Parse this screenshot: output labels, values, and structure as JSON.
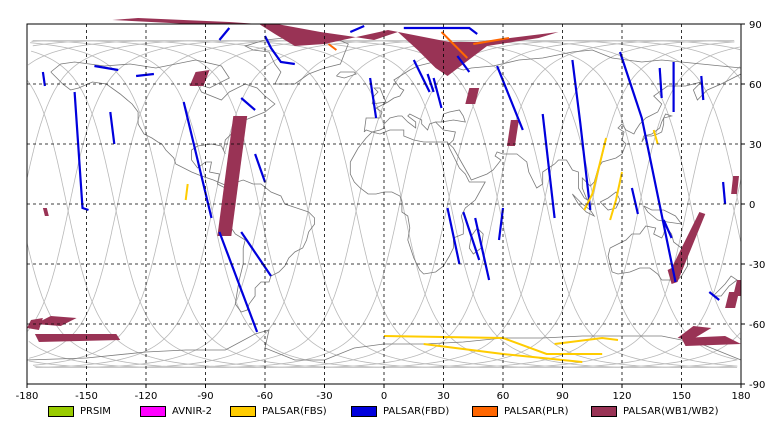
{
  "map": {
    "x_axis": {
      "min": -180,
      "max": 180,
      "ticks": [
        -180,
        -150,
        -120,
        -90,
        -60,
        -30,
        0,
        30,
        60,
        90,
        120,
        150,
        180
      ]
    },
    "y_axis": {
      "min": -90,
      "max": 90,
      "ticks": [
        90,
        60,
        30,
        0,
        -30,
        -60,
        -90
      ]
    },
    "grid": true,
    "grid_style": "dashed"
  },
  "legend": {
    "placement": "bottom",
    "items": [
      {
        "label": "PRSIM",
        "color": "#99cc00"
      },
      {
        "label": "AVNIR-2",
        "color": "#ff00ff"
      },
      {
        "label": "PALSAR(FBS)",
        "color": "#ffcc00"
      },
      {
        "label": "PALSAR(FBD)",
        "color": "#0000dd"
      },
      {
        "label": "PALSAR(PLR)",
        "color": "#ff6600"
      },
      {
        "label": "PALSAR(WB1/WB2)",
        "color": "#993355"
      }
    ]
  },
  "chart_data": {
    "type": "map",
    "swaths": {
      "wb": [
        [
          [
            -172,
            -2
          ],
          [
            -170,
            -2
          ],
          [
            -169,
            -6
          ],
          [
            -171,
            -6
          ]
        ],
        [
          [
            -168,
            -56
          ],
          [
            -155,
            -57
          ],
          [
            -163,
            -61
          ],
          [
            -176,
            -60
          ]
        ],
        [
          [
            -178,
            -58
          ],
          [
            -172,
            -57
          ],
          [
            -174,
            -63
          ],
          [
            -180,
            -62
          ]
        ],
        [
          [
            -176,
            -65
          ],
          [
            -135,
            -65
          ],
          [
            -133,
            -68
          ],
          [
            -174,
            -69
          ]
        ],
        [
          [
            -76,
            44
          ],
          [
            -69,
            44
          ],
          [
            -77,
            -16
          ],
          [
            -84,
            -16
          ]
        ],
        [
          [
            -95,
            66
          ],
          [
            -88,
            67
          ],
          [
            -91,
            59
          ],
          [
            -98,
            59
          ]
        ],
        [
          [
            -137,
            92
          ],
          [
            -124,
            93
          ],
          [
            -78,
            91
          ],
          [
            -63,
            90
          ],
          [
            -55,
            85
          ],
          [
            -45,
            79
          ],
          [
            -30,
            80
          ],
          [
            2,
            87
          ],
          [
            33,
            81
          ],
          [
            47,
            81
          ],
          [
            88,
            86
          ],
          [
            78,
            83
          ],
          [
            52,
            79
          ],
          [
            32,
            64
          ],
          [
            26,
            68
          ],
          [
            22,
            72
          ],
          [
            17,
            77
          ],
          [
            7,
            86
          ],
          [
            -5,
            82
          ],
          [
            -18,
            84
          ],
          [
            -32,
            86
          ],
          [
            -54,
            90
          ],
          [
            -74,
            90
          ],
          [
            -98,
            90
          ]
        ],
        [
          [
            43,
            58
          ],
          [
            48,
            58
          ],
          [
            46,
            50
          ],
          [
            41,
            50
          ]
        ],
        [
          [
            64,
            42
          ],
          [
            68,
            42
          ],
          [
            66,
            29
          ],
          [
            62,
            29
          ]
        ],
        [
          [
            159,
            -4
          ],
          [
            162,
            -5
          ],
          [
            148,
            -39
          ],
          [
            145,
            -40
          ],
          [
            143,
            -33
          ],
          [
            145,
            -32
          ]
        ],
        [
          [
            176,
            14
          ],
          [
            179,
            14
          ],
          [
            178,
            5
          ],
          [
            175,
            5
          ]
        ],
        [
          [
            174,
            -44
          ],
          [
            179,
            -44
          ],
          [
            177,
            -52
          ],
          [
            172,
            -52
          ]
        ],
        [
          [
            178,
            -38
          ],
          [
            180,
            -38
          ],
          [
            180,
            -46
          ],
          [
            176,
            -46
          ]
        ],
        [
          [
            150,
            -67
          ],
          [
            172,
            -66
          ],
          [
            180,
            -70
          ],
          [
            152,
            -71
          ]
        ],
        [
          [
            156,
            -61
          ],
          [
            165,
            -62
          ],
          [
            155,
            -68
          ],
          [
            148,
            -67
          ]
        ]
      ],
      "fbd": [
        [
          [
            -156,
            56
          ],
          [
            -152,
            -2
          ],
          [
            -149,
            -3
          ]
        ],
        [
          [
            -172,
            66
          ],
          [
            -171,
            59
          ]
        ],
        [
          [
            -146,
            69
          ],
          [
            -134,
            67
          ]
        ],
        [
          [
            -125,
            64
          ],
          [
            -116,
            65
          ]
        ],
        [
          [
            -138,
            46
          ],
          [
            -136,
            30
          ]
        ],
        [
          [
            -101,
            51
          ],
          [
            -87,
            -7
          ]
        ],
        [
          [
            -72,
            53
          ],
          [
            -65,
            47
          ]
        ],
        [
          [
            -65,
            25
          ],
          [
            -60,
            11
          ]
        ],
        [
          [
            -72,
            -14
          ],
          [
            -57,
            -36
          ]
        ],
        [
          [
            -83,
            -14
          ],
          [
            -64,
            -64
          ]
        ],
        [
          [
            -60,
            84
          ],
          [
            -57,
            78
          ],
          [
            -52,
            71
          ],
          [
            -45,
            70
          ]
        ],
        [
          [
            -83,
            82
          ],
          [
            -78,
            88
          ]
        ],
        [
          [
            10,
            88
          ],
          [
            43,
            88
          ],
          [
            47,
            85
          ]
        ],
        [
          [
            -17,
            86
          ],
          [
            -10,
            89
          ]
        ],
        [
          [
            -7,
            63
          ],
          [
            -4,
            43
          ]
        ],
        [
          [
            15,
            72
          ],
          [
            23,
            56
          ]
        ],
        [
          [
            22,
            65
          ],
          [
            25,
            56
          ]
        ],
        [
          [
            25,
            63
          ],
          [
            29,
            48
          ]
        ],
        [
          [
            37,
            74
          ],
          [
            43,
            66
          ]
        ],
        [
          [
            57,
            69
          ],
          [
            70,
            37
          ]
        ],
        [
          [
            60,
            -2
          ],
          [
            58,
            -18
          ]
        ],
        [
          [
            32,
            -2
          ],
          [
            38,
            -30
          ]
        ],
        [
          [
            40,
            -4
          ],
          [
            48,
            -28
          ]
        ],
        [
          [
            46,
            -7
          ],
          [
            53,
            -38
          ]
        ],
        [
          [
            80,
            45
          ],
          [
            86,
            -7
          ]
        ],
        [
          [
            95,
            72
          ],
          [
            99,
            40
          ],
          [
            104,
            -3
          ]
        ],
        [
          [
            119,
            76
          ],
          [
            130,
            43
          ],
          [
            147,
            -39
          ]
        ],
        [
          [
            139,
            68
          ],
          [
            140,
            53
          ]
        ],
        [
          [
            146,
            71
          ],
          [
            146,
            46
          ]
        ],
        [
          [
            160,
            64
          ],
          [
            161,
            52
          ]
        ],
        [
          [
            125,
            8
          ],
          [
            128,
            -5
          ]
        ],
        [
          [
            141,
            -8
          ],
          [
            145,
            -17
          ]
        ],
        [
          [
            171,
            11
          ],
          [
            172,
            0
          ]
        ],
        [
          [
            164,
            -44
          ],
          [
            169,
            -48
          ]
        ]
      ],
      "fbs": [
        [
          [
            -99,
            10
          ],
          [
            -100,
            2
          ]
        ],
        [
          [
            112,
            33
          ],
          [
            105,
            5
          ],
          [
            101,
            -3
          ]
        ],
        [
          [
            120,
            16
          ],
          [
            117,
            2
          ],
          [
            114,
            -8
          ]
        ],
        [
          [
            136,
            37
          ],
          [
            138,
            30
          ]
        ],
        [
          [
            0,
            -66
          ],
          [
            60,
            -67
          ],
          [
            82,
            -75
          ],
          [
            110,
            -75
          ]
        ],
        [
          [
            20,
            -70
          ],
          [
            60,
            -75
          ],
          [
            100,
            -79
          ]
        ],
        [
          [
            86,
            -70
          ],
          [
            110,
            -67
          ],
          [
            118,
            -68
          ]
        ]
      ],
      "plr": [
        [
          [
            29,
            86
          ],
          [
            37,
            78
          ],
          [
            42,
            73
          ]
        ],
        [
          [
            45,
            80
          ],
          [
            63,
            83
          ]
        ],
        [
          [
            -28,
            80
          ],
          [
            -24,
            77
          ]
        ]
      ]
    }
  }
}
